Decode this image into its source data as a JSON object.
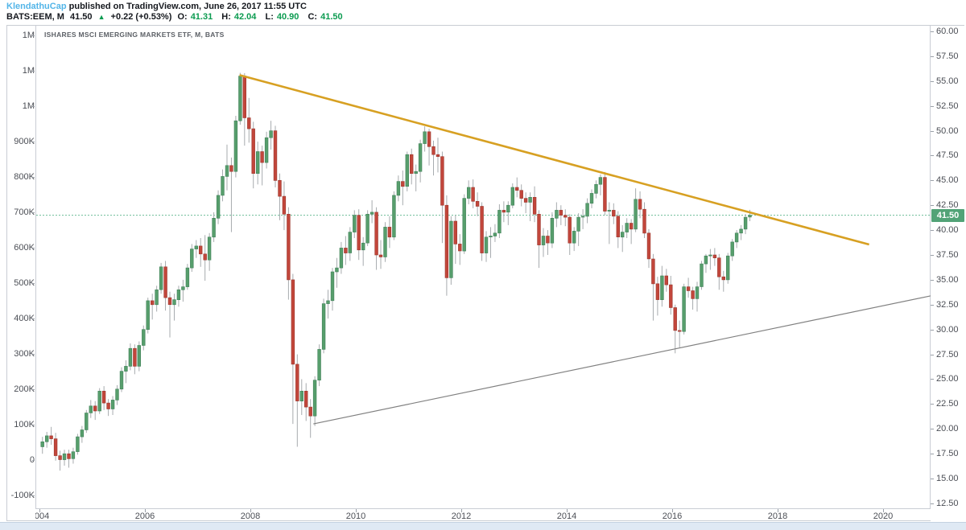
{
  "header": {
    "author": "KlendathuCap",
    "published": "published on TradingView.com, June 26, 2017 11:55 UTC",
    "symbol": "BATS:EEM, M",
    "last_price": "41.50",
    "arrow": "▲",
    "change": "+0.22 (+0.53%)",
    "o_label": "O:",
    "o_value": "41.31",
    "h_label": "H:",
    "h_value": "42.04",
    "l_label": "L:",
    "l_value": "40.90",
    "c_label": "C:",
    "c_value": "41.50"
  },
  "chart_title": "ISHARES MSCI EMERGING MARKETS ETF, M, BATS",
  "colors": {
    "up": "#579e6c",
    "up_border": "#41825a",
    "down": "#c2463b",
    "down_border": "#9c382e",
    "wick": "#a7abae",
    "trend_gold": "#d7a022",
    "trend_gray": "#808080",
    "price_line": "#6dbd97",
    "badge": "#52a377",
    "axis_text": "#4b4e55"
  },
  "chart_data": {
    "type": "candlestick",
    "symbol": "EEM",
    "exchange": "BATS",
    "timeframe": "monthly",
    "start": "2004-01",
    "end": "2017-06",
    "current_price": 41.5,
    "current_price_label": "41.50",
    "price_axis": {
      "min": 11.9,
      "max": 60.65,
      "tick_step": 2.5,
      "tick_values": [
        60,
        57.5,
        55,
        52.5,
        50,
        47.5,
        45,
        42.5,
        40,
        37.5,
        35,
        32.5,
        30,
        27.5,
        25,
        22.5,
        20,
        17.5,
        15,
        12.5
      ],
      "tick_labels": [
        "60.00",
        "57.50",
        "55.00",
        "52.50",
        "50.00",
        "47.50",
        "45.00",
        "42.50",
        "40.00",
        "37.50",
        "35.00",
        "32.50",
        "30.00",
        "27.50",
        "25.00",
        "22.50",
        "20.00",
        "17.50",
        "15.00",
        "12.50"
      ]
    },
    "volume_axis": {
      "tick_values": [
        1200000,
        1100000,
        1000000,
        900000,
        800000,
        700000,
        600000,
        500000,
        400000,
        300000,
        200000,
        100000,
        0,
        -100000
      ],
      "tick_labels": [
        "1M",
        "1M",
        "1M",
        "900K",
        "800K",
        "700K",
        "600K",
        "500K",
        "400K",
        "300K",
        "200K",
        "100K",
        "0",
        "-100K"
      ]
    },
    "time_axis": {
      "tick_values": [
        2004,
        2006,
        2008,
        2010,
        2012,
        2014,
        2016,
        2018,
        2020
      ],
      "tick_labels": [
        "2004",
        "2006",
        "2008",
        "2010",
        "2012",
        "2014",
        "2016",
        "2018",
        "2020"
      ]
    },
    "trendlines": [
      {
        "name": "descending-resistance",
        "color": "#d7a022",
        "width": 2.6,
        "x1": 2007.78,
        "p1": 55.6,
        "x2": 2019.72,
        "p2": 38.55
      },
      {
        "name": "ascending-support",
        "color": "#808080",
        "width": 1.2,
        "x1": 2009.18,
        "p1": 20.5,
        "x2": 2020.95,
        "p2": 33.4
      }
    ],
    "ohlc": [
      [
        18.2,
        19.2,
        17.5,
        18.7
      ],
      [
        18.7,
        19.7,
        18.1,
        19.3
      ],
      [
        19.3,
        20.2,
        18.4,
        19.0
      ],
      [
        19.0,
        19.6,
        16.8,
        17.3
      ],
      [
        17.3,
        17.8,
        15.8,
        16.9
      ],
      [
        16.9,
        17.9,
        16.3,
        17.5
      ],
      [
        17.5,
        17.9,
        16.1,
        17.0
      ],
      [
        17.0,
        18.1,
        16.5,
        17.7
      ],
      [
        17.7,
        19.5,
        17.4,
        19.2
      ],
      [
        19.2,
        20.3,
        18.6,
        19.9
      ],
      [
        19.9,
        21.9,
        19.6,
        21.6
      ],
      [
        21.6,
        22.9,
        21.1,
        22.3
      ],
      [
        22.3,
        22.8,
        20.9,
        21.8
      ],
      [
        21.8,
        24.1,
        21.5,
        23.8
      ],
      [
        23.8,
        24.3,
        21.9,
        22.6
      ],
      [
        22.6,
        23.0,
        21.3,
        22.0
      ],
      [
        22.0,
        23.3,
        21.4,
        22.9
      ],
      [
        22.9,
        24.4,
        22.4,
        24.0
      ],
      [
        24.0,
        26.2,
        23.7,
        25.8
      ],
      [
        25.8,
        26.9,
        24.6,
        26.3
      ],
      [
        26.3,
        28.6,
        25.9,
        28.1
      ],
      [
        28.1,
        28.5,
        25.5,
        26.3
      ],
      [
        26.3,
        28.8,
        25.8,
        28.4
      ],
      [
        28.4,
        30.4,
        27.9,
        30.0
      ],
      [
        30.0,
        33.2,
        29.6,
        32.9
      ],
      [
        32.9,
        33.6,
        31.0,
        32.5
      ],
      [
        32.5,
        34.4,
        31.8,
        34.0
      ],
      [
        34.0,
        36.7,
        33.6,
        36.3
      ],
      [
        36.3,
        36.9,
        31.9,
        33.2
      ],
      [
        33.2,
        33.8,
        29.2,
        32.5
      ],
      [
        32.5,
        33.6,
        30.9,
        33.0
      ],
      [
        33.0,
        34.4,
        32.3,
        34.0
      ],
      [
        34.0,
        35.0,
        32.8,
        34.3
      ],
      [
        34.3,
        36.6,
        34.0,
        36.2
      ],
      [
        36.2,
        38.6,
        35.8,
        38.1
      ],
      [
        38.1,
        39.0,
        37.2,
        38.4
      ],
      [
        38.4,
        39.2,
        36.3,
        37.6
      ],
      [
        37.6,
        39.5,
        34.9,
        37.0
      ],
      [
        37.0,
        39.7,
        35.9,
        39.3
      ],
      [
        39.3,
        41.8,
        38.8,
        41.2
      ],
      [
        41.2,
        44.0,
        40.6,
        43.5
      ],
      [
        43.5,
        46.1,
        42.9,
        45.4
      ],
      [
        45.4,
        48.6,
        44.0,
        46.5
      ],
      [
        46.5,
        47.3,
        39.8,
        45.9
      ],
      [
        45.9,
        51.5,
        45.3,
        51.0
      ],
      [
        51.0,
        55.83,
        50.6,
        55.5
      ],
      [
        55.5,
        55.8,
        48.5,
        51.3
      ],
      [
        51.3,
        53.3,
        48.8,
        50.2
      ],
      [
        50.2,
        50.9,
        44.2,
        45.7
      ],
      [
        45.7,
        48.9,
        44.6,
        47.9
      ],
      [
        47.9,
        48.5,
        44.5,
        46.8
      ],
      [
        46.8,
        49.9,
        46.2,
        49.3
      ],
      [
        49.3,
        51.0,
        48.1,
        50.0
      ],
      [
        50.0,
        50.5,
        44.3,
        45.0
      ],
      [
        45.0,
        45.7,
        41.0,
        43.4
      ],
      [
        43.4,
        44.9,
        40.0,
        41.6
      ],
      [
        41.6,
        42.3,
        33.0,
        35.0
      ],
      [
        35.0,
        35.6,
        20.5,
        26.5
      ],
      [
        26.5,
        27.5,
        18.2,
        22.8
      ],
      [
        22.8,
        25.0,
        21.4,
        23.8
      ],
      [
        23.8,
        24.6,
        20.8,
        22.2
      ],
      [
        22.2,
        23.0,
        19.1,
        21.3
      ],
      [
        21.3,
        25.3,
        20.3,
        24.9
      ],
      [
        24.9,
        28.5,
        24.3,
        28.0
      ],
      [
        28.0,
        33.1,
        27.6,
        32.6
      ],
      [
        32.6,
        34.0,
        31.1,
        32.9
      ],
      [
        32.9,
        36.2,
        31.9,
        35.8
      ],
      [
        35.8,
        37.2,
        34.2,
        36.2
      ],
      [
        36.2,
        38.8,
        35.6,
        38.2
      ],
      [
        38.2,
        39.4,
        36.5,
        37.7
      ],
      [
        37.7,
        40.3,
        36.9,
        39.8
      ],
      [
        39.8,
        42.0,
        39.2,
        41.5
      ],
      [
        41.5,
        42.1,
        37.0,
        38.0
      ],
      [
        38.0,
        39.3,
        36.4,
        38.7
      ],
      [
        38.7,
        42.0,
        38.4,
        41.6
      ],
      [
        41.6,
        43.0,
        40.7,
        41.8
      ],
      [
        41.8,
        42.3,
        36.0,
        37.5
      ],
      [
        37.5,
        39.0,
        36.1,
        37.3
      ],
      [
        37.3,
        40.8,
        36.8,
        40.3
      ],
      [
        40.3,
        41.4,
        38.2,
        39.3
      ],
      [
        39.3,
        43.9,
        39.0,
        43.5
      ],
      [
        43.5,
        45.5,
        42.9,
        44.9
      ],
      [
        44.9,
        46.0,
        42.5,
        44.4
      ],
      [
        44.4,
        47.9,
        43.9,
        47.6
      ],
      [
        47.6,
        48.2,
        44.6,
        45.7
      ],
      [
        45.7,
        46.6,
        43.9,
        45.9
      ],
      [
        45.9,
        49.1,
        44.8,
        48.7
      ],
      [
        48.7,
        50.43,
        47.9,
        49.9
      ],
      [
        49.9,
        50.2,
        46.5,
        48.4
      ],
      [
        48.4,
        49.0,
        45.5,
        47.6
      ],
      [
        47.6,
        49.3,
        45.8,
        47.4
      ],
      [
        47.4,
        47.9,
        38.7,
        42.5
      ],
      [
        42.5,
        43.5,
        33.4,
        35.2
      ],
      [
        35.2,
        41.4,
        34.5,
        40.9
      ],
      [
        40.9,
        41.5,
        36.6,
        38.6
      ],
      [
        38.6,
        39.6,
        36.5,
        37.9
      ],
      [
        37.9,
        43.6,
        37.6,
        43.2
      ],
      [
        43.2,
        45.0,
        42.6,
        44.3
      ],
      [
        44.3,
        45.1,
        42.2,
        42.9
      ],
      [
        42.9,
        43.8,
        41.4,
        42.4
      ],
      [
        42.4,
        42.8,
        36.9,
        37.7
      ],
      [
        37.7,
        39.9,
        36.8,
        39.3
      ],
      [
        39.3,
        40.3,
        37.2,
        39.4
      ],
      [
        39.4,
        40.6,
        38.8,
        39.7
      ],
      [
        39.7,
        42.6,
        39.2,
        42.0
      ],
      [
        42.0,
        42.9,
        40.8,
        41.8
      ],
      [
        41.8,
        42.9,
        40.5,
        42.5
      ],
      [
        42.5,
        44.7,
        42.2,
        44.3
      ],
      [
        44.3,
        45.3,
        43.3,
        44.0
      ],
      [
        44.0,
        44.6,
        42.4,
        43.2
      ],
      [
        43.2,
        43.8,
        41.7,
        42.8
      ],
      [
        42.8,
        43.8,
        40.9,
        43.3
      ],
      [
        43.3,
        44.4,
        40.8,
        41.6
      ],
      [
        41.6,
        42.0,
        36.2,
        38.5
      ],
      [
        38.5,
        40.2,
        37.3,
        39.4
      ],
      [
        39.4,
        40.0,
        37.5,
        38.7
      ],
      [
        38.7,
        41.8,
        38.2,
        41.2
      ],
      [
        41.2,
        42.8,
        40.3,
        42.0
      ],
      [
        42.0,
        42.5,
        40.5,
        41.5
      ],
      [
        41.5,
        42.1,
        40.4,
        41.3
      ],
      [
        41.3,
        41.6,
        37.5,
        38.7
      ],
      [
        38.7,
        40.3,
        37.9,
        39.9
      ],
      [
        39.9,
        41.7,
        38.4,
        41.3
      ],
      [
        41.3,
        42.1,
        40.1,
        41.4
      ],
      [
        41.4,
        43.2,
        40.7,
        42.7
      ],
      [
        42.7,
        44.1,
        42.2,
        43.7
      ],
      [
        43.7,
        45.0,
        43.2,
        44.6
      ],
      [
        44.6,
        45.6,
        43.5,
        45.3
      ],
      [
        45.3,
        45.85,
        41.5,
        41.9
      ],
      [
        41.9,
        42.8,
        38.6,
        42.0
      ],
      [
        42.0,
        42.7,
        40.6,
        41.4
      ],
      [
        41.4,
        41.9,
        38.2,
        39.3
      ],
      [
        39.3,
        40.5,
        37.8,
        39.8
      ],
      [
        39.8,
        41.2,
        39.2,
        40.7
      ],
      [
        40.7,
        41.1,
        38.6,
        40.1
      ],
      [
        40.1,
        44.2,
        39.8,
        43.1
      ],
      [
        43.1,
        43.9,
        41.2,
        42.1
      ],
      [
        42.1,
        42.8,
        39.2,
        39.7
      ],
      [
        39.7,
        40.1,
        36.2,
        37.1
      ],
      [
        37.1,
        37.6,
        30.9,
        34.6
      ],
      [
        34.6,
        35.3,
        31.4,
        33.0
      ],
      [
        33.0,
        36.4,
        32.3,
        35.4
      ],
      [
        35.4,
        36.1,
        33.8,
        34.5
      ],
      [
        34.5,
        35.4,
        31.5,
        32.2
      ],
      [
        32.2,
        32.5,
        27.6,
        29.9
      ],
      [
        29.9,
        30.9,
        28.2,
        29.8
      ],
      [
        29.8,
        34.6,
        29.5,
        34.3
      ],
      [
        34.3,
        35.2,
        33.2,
        33.9
      ],
      [
        33.9,
        34.3,
        32.0,
        33.1
      ],
      [
        33.1,
        34.8,
        31.8,
        34.3
      ],
      [
        34.3,
        36.9,
        34.0,
        36.6
      ],
      [
        36.6,
        37.6,
        35.7,
        37.4
      ],
      [
        37.4,
        38.1,
        36.0,
        37.5
      ],
      [
        37.5,
        38.2,
        36.4,
        37.2
      ],
      [
        37.2,
        37.6,
        34.0,
        35.3
      ],
      [
        35.3,
        35.9,
        33.8,
        35.0
      ],
      [
        35.0,
        37.7,
        34.6,
        37.4
      ],
      [
        37.4,
        39.1,
        36.9,
        38.8
      ],
      [
        38.8,
        40.0,
        38.2,
        39.7
      ],
      [
        39.7,
        40.5,
        39.0,
        40.1
      ],
      [
        40.1,
        41.6,
        39.6,
        41.3
      ],
      [
        41.31,
        42.04,
        40.9,
        41.5
      ]
    ]
  }
}
